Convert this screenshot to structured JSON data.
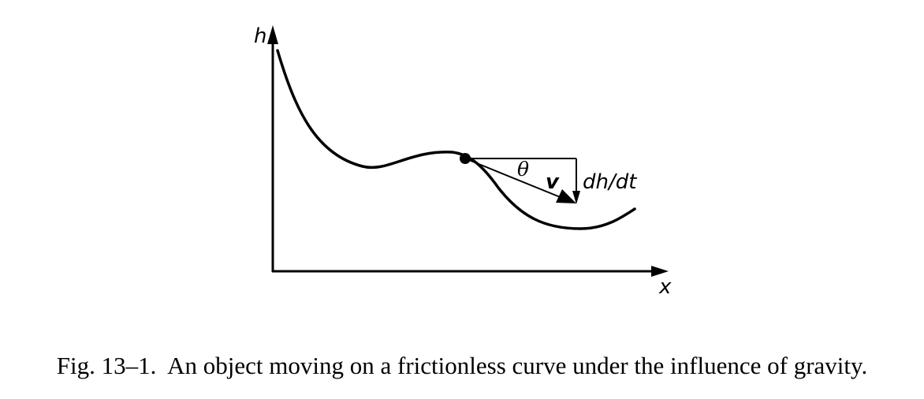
{
  "diagram": {
    "axis_y_label": "h",
    "axis_x_label": "x",
    "angle_label": "θ",
    "velocity_label": "v",
    "derivative_label": "dh/dt"
  },
  "caption": {
    "text": "Fig. 13–1.  An object moving on a frictionless curve under the influence of gravity."
  }
}
